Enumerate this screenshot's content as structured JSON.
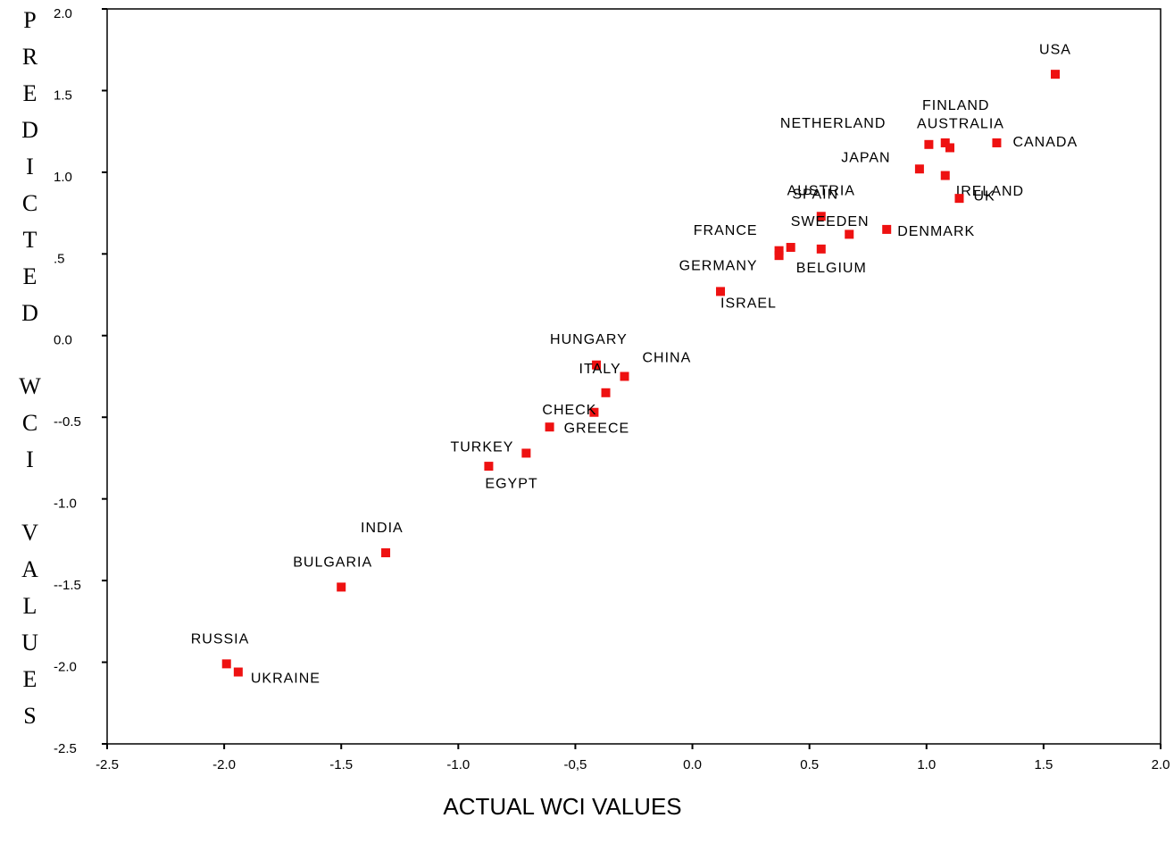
{
  "chart_data": {
    "type": "scatter",
    "x_label": "ACTUAL WCI VALUES",
    "y_label": "PREDICTED WCI VALUES",
    "color": "#ee1111",
    "labels": [
      "USA",
      "CANADA",
      "NETHERLAND",
      "FINLAND",
      "AUSTRALIA",
      "JAPAN",
      "IRELAND",
      "UK",
      "AUSTRIA",
      "SPAIN",
      "DENMARK",
      "SWEEDEN",
      "FRANCE",
      "GERMANY",
      "BELGIUM",
      "ISRAEL",
      "HUNGARY",
      "CHINA",
      "ITALY",
      "CHECK",
      "GREECE",
      "TURKEY",
      "EGYPT",
      "INDIA",
      "BULGARIA",
      "RUSSIA",
      "UKRAINE"
    ],
    "x": [
      1.55,
      1.3,
      1.01,
      1.08,
      1.1,
      0.97,
      1.08,
      1.14,
      0.55,
      0.67,
      0.83,
      0.42,
      0.37,
      0.37,
      0.55,
      0.12,
      -0.41,
      -0.29,
      -0.37,
      -0.42,
      -0.61,
      -0.71,
      -0.87,
      -1.31,
      -1.5,
      -1.99,
      -1.94
    ],
    "y": [
      1.6,
      1.18,
      1.17,
      1.18,
      1.15,
      1.02,
      0.98,
      0.84,
      0.73,
      0.62,
      0.65,
      0.54,
      0.52,
      0.49,
      0.53,
      0.27,
      -0.18,
      -0.25,
      -0.35,
      -0.47,
      -0.56,
      -0.72,
      -0.8,
      -1.33,
      -1.54,
      -2.01,
      -2.06
    ],
    "xlim": [
      -2.5,
      2.0
    ],
    "ylim": [
      -2.5,
      2.0
    ],
    "xticks": [
      -2.5,
      {
        "value": -2.0,
        "label": "-2.0"
      },
      -1.5,
      {
        "value": -1.0,
        "label": "-1.0"
      },
      {
        "value": -0.5,
        "label": "-0,5"
      },
      {
        "value": 0,
        "label": "0.0"
      },
      0.5,
      {
        "value": 1.0,
        "label": "1.0"
      },
      1.5,
      {
        "value": 2.0,
        "label": "2.0"
      }
    ],
    "yticks": [
      {
        "value": 2.0,
        "label": "2.0"
      },
      1.5,
      {
        "value": 1.0,
        "label": "1.0"
      },
      {
        "value": 0.5,
        "label": ".5"
      },
      {
        "value": 0,
        "label": "0.0"
      },
      {
        "value": -0.5,
        "label": "--0.5"
      },
      {
        "value": -1.0,
        "label": "-1.0"
      },
      {
        "value": -1.5,
        "label": "--1.5"
      },
      {
        "value": -2.0,
        "label": "-2.0"
      },
      -2.5
    ]
  }
}
